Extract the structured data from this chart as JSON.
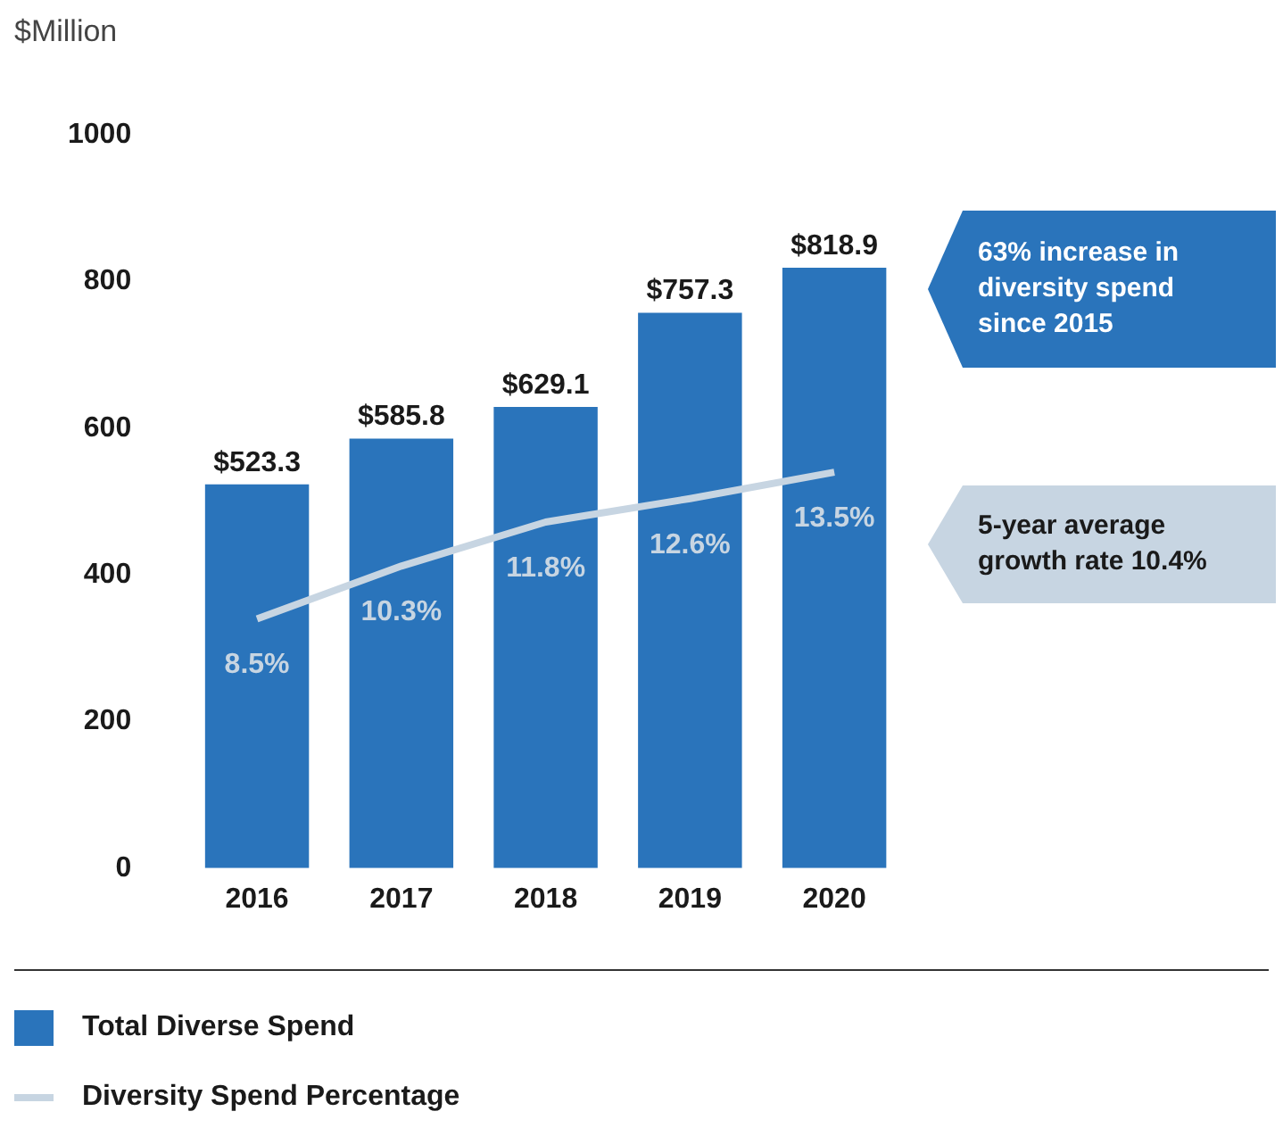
{
  "chart_data": {
    "type": "bar",
    "ylabel": "$Million",
    "categories": [
      "2016",
      "2017",
      "2018",
      "2019",
      "2020"
    ],
    "series": [
      {
        "name": "Total Diverse Spend",
        "color": "#2a74bb",
        "values": [
          523.3,
          585.8,
          629.1,
          757.3,
          818.9
        ],
        "value_labels": [
          "$523.3",
          "$585.8",
          "$629.1",
          "$757.3",
          "$818.9"
        ]
      },
      {
        "name": "Diversity Spend Percentage",
        "type": "line",
        "axis": "y2",
        "color": "#c7d5e2",
        "values": [
          8.5,
          10.3,
          11.8,
          12.6,
          13.5
        ],
        "value_labels": [
          "8.5%",
          "10.3%",
          "11.8%",
          "12.6%",
          "13.5%"
        ]
      }
    ],
    "ylim": [
      0,
      1000
    ],
    "yticks": [
      0,
      200,
      400,
      600,
      800,
      1000
    ],
    "grid": false,
    "legend": "bottom",
    "marker": "none",
    "annotations": [
      "63% increase in diversity spend since 2015",
      "5-year average growth rate 10.4%"
    ]
  }
}
